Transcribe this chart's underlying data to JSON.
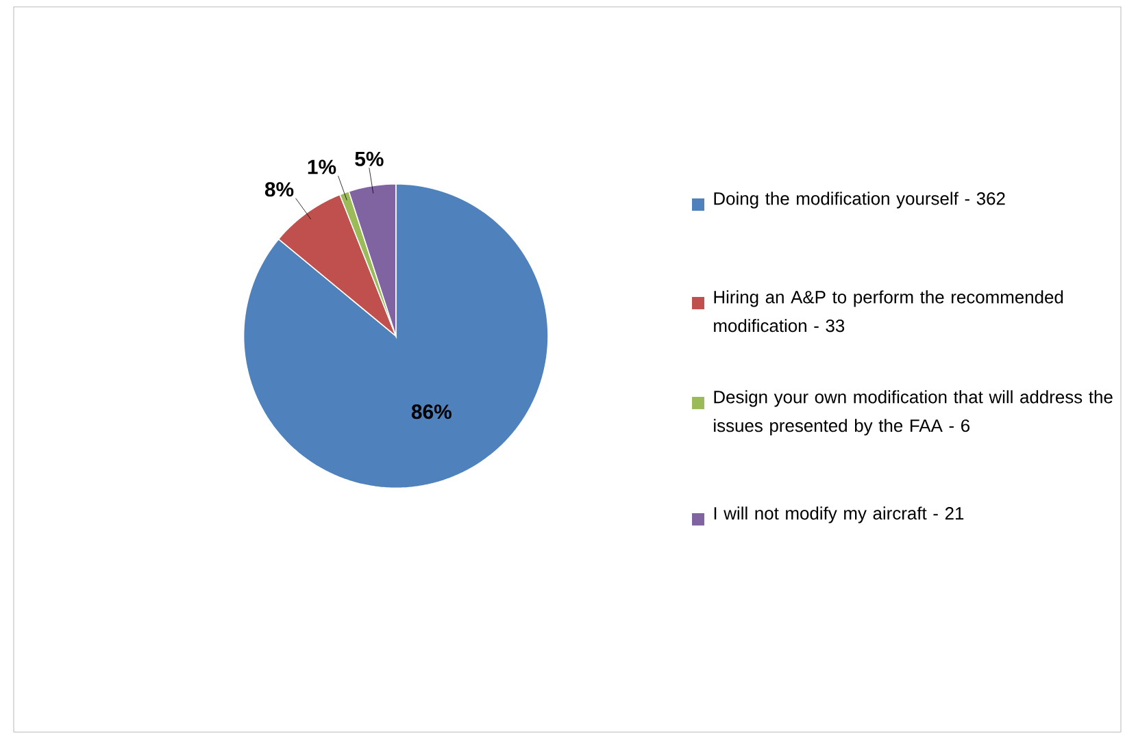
{
  "chart_data": {
    "type": "pie",
    "categories": [
      "Doing the modification yourself - 362",
      "Hiring an A&P to perform the recommended modification - 33",
      "Design your own modification that will address the issues presented by the FAA - 6",
      "I will not modify my aircraft - 21"
    ],
    "values": [
      86,
      8,
      1,
      5
    ],
    "colors": [
      "#4f81bd",
      "#c0504d",
      "#9bbb59",
      "#8064a2"
    ],
    "value_labels": [
      "86%",
      "8%",
      "1%",
      "5%"
    ],
    "legend": "right"
  }
}
